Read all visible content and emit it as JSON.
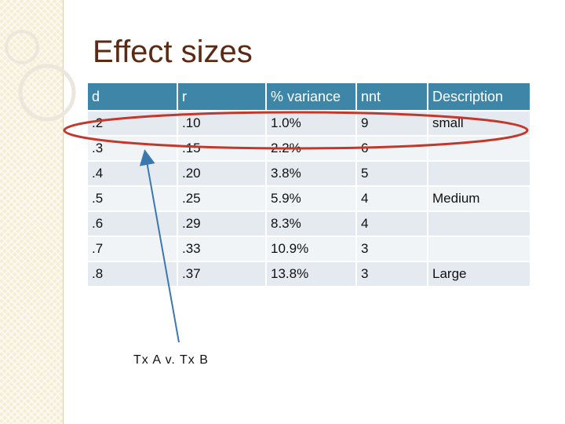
{
  "slide": {
    "title": "Effect sizes",
    "note": "Tx  A v. Tx B"
  },
  "table": {
    "headers": [
      "d",
      "r",
      "% variance",
      "nnt",
      "Description"
    ],
    "rows": [
      [
        ".2",
        ".10",
        "1.0%",
        "9",
        "small"
      ],
      [
        ".3",
        ".15",
        "2.2%",
        "6",
        ""
      ],
      [
        ".4",
        ".20",
        "3.8%",
        "5",
        ""
      ],
      [
        ".5",
        ".25",
        "5.9%",
        "4",
        "Medium"
      ],
      [
        ".6",
        ".29",
        "8.3%",
        "4",
        ""
      ],
      [
        ".7",
        ".33",
        "10.9%",
        "3",
        ""
      ],
      [
        ".8",
        ".37",
        "13.8%",
        "3",
        "Large"
      ]
    ]
  },
  "colors": {
    "header_fill": "#3e86a8",
    "row_fill": "#e4eaf0",
    "highlight_ellipse": "#c0392b",
    "arrow": "#3a78b0",
    "title": "#5a2a14"
  }
}
